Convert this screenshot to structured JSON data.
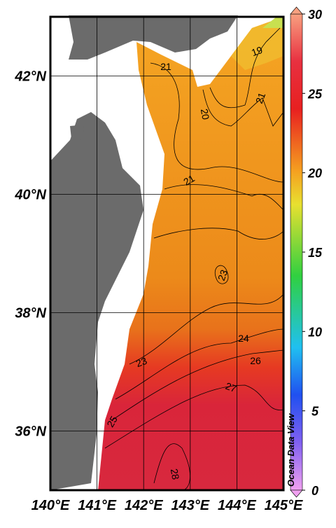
{
  "map": {
    "type": "map",
    "lon_lim": [
      140,
      145
    ],
    "lat_lim": [
      35,
      43
    ],
    "lon_ticks": [
      {
        "value": 140,
        "label": "140°E"
      },
      {
        "value": 141,
        "label": "141°E"
      },
      {
        "value": 142,
        "label": "142°E"
      },
      {
        "value": 143,
        "label": "143°E"
      },
      {
        "value": 144,
        "label": "144°E"
      },
      {
        "value": 145,
        "label": "145°E"
      }
    ],
    "lat_ticks": [
      {
        "value": 36,
        "label": "36°N"
      },
      {
        "value": 38,
        "label": "38°N"
      },
      {
        "value": 40,
        "label": "40°N"
      },
      {
        "value": 42,
        "label": "42°N"
      }
    ],
    "colorbar": {
      "lim": [
        0,
        30
      ],
      "ticks": [
        0,
        5,
        10,
        15,
        20,
        25,
        30
      ]
    },
    "contour_labels": [
      19,
      21,
      20,
      21,
      21,
      23,
      24,
      23,
      26,
      27,
      25,
      28
    ],
    "watermark": "Ocean Data View"
  }
}
